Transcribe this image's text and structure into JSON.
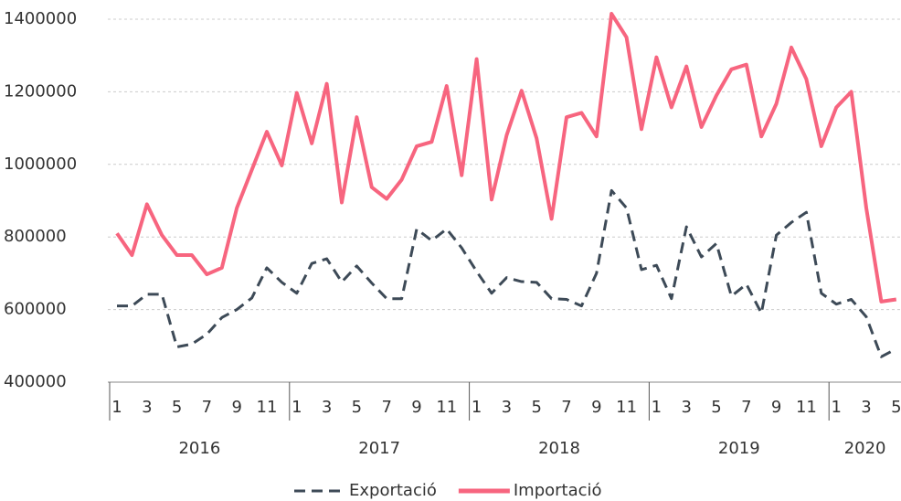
{
  "chart_data": {
    "type": "line",
    "categories": [
      "1",
      null,
      "3",
      null,
      "5",
      null,
      "7",
      null,
      "9",
      null,
      "11",
      null,
      "1",
      null,
      "3",
      null,
      "5",
      null,
      "7",
      null,
      "9",
      null,
      "11",
      null,
      "1",
      null,
      "3",
      null,
      "5",
      null,
      "7",
      null,
      "9",
      null,
      "11",
      null,
      "1",
      null,
      "3",
      null,
      "5",
      null,
      "7",
      null,
      "9",
      null,
      "11",
      null,
      "1",
      null,
      "3",
      null,
      "5"
    ],
    "years": [
      "2016",
      "2017",
      "2018",
      "2019",
      "2020"
    ],
    "series": [
      {
        "name": "Exportació",
        "color": "#3d4a57",
        "dashed": true,
        "values": [
          610000,
          610000,
          642000,
          642000,
          497000,
          505000,
          532000,
          578000,
          600000,
          632000,
          715000,
          675000,
          645000,
          727000,
          740000,
          676000,
          720000,
          673000,
          630000,
          630000,
          822000,
          790000,
          822000,
          770000,
          705000,
          645000,
          688000,
          677000,
          675000,
          630000,
          628000,
          610000,
          700000,
          928000,
          880000,
          710000,
          722000,
          630000,
          828000,
          745000,
          782000,
          637000,
          670000,
          590000,
          805000,
          840000,
          868000,
          645000,
          615000,
          628000,
          580000,
          470000,
          492000
        ]
      },
      {
        "name": "Importació",
        "color": "#f7657f",
        "dashed": false,
        "values": [
          810000,
          750000,
          890000,
          805000,
          750000,
          750000,
          697000,
          715000,
          880000,
          985000,
          1090000,
          997000,
          1197000,
          1058000,
          1222000,
          895000,
          1130000,
          937000,
          905000,
          958000,
          1050000,
          1062000,
          1216000,
          970000,
          1290000,
          903000,
          1080000,
          1203000,
          1072000,
          850000,
          1130000,
          1142000,
          1077000,
          1415000,
          1350000,
          1097000,
          1295000,
          1157000,
          1270000,
          1103000,
          1190000,
          1262000,
          1275000,
          1077000,
          1167000,
          1322000,
          1235000,
          1050000,
          1157000,
          1200000,
          880000,
          622000,
          628000
        ]
      }
    ],
    "ylim": [
      400000,
      1400000
    ],
    "yticks": [
      400000,
      600000,
      800000,
      1000000,
      1200000,
      1400000
    ],
    "grid": true,
    "legend": "bottom"
  }
}
